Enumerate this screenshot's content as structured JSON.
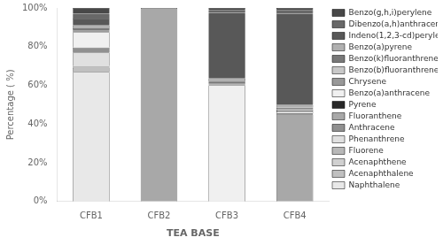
{
  "chart_data": {
    "type": "bar",
    "stacked": true,
    "xlabel": "TEA BASE",
    "ylabel": "Percentage ( %)",
    "categories": [
      "CFB1",
      "CFB2",
      "CFB3",
      "CFB4"
    ],
    "series": [
      {
        "name": "Naphthalene",
        "color": "#e8e8e8",
        "values": [
          67.0,
          0.0,
          0.0,
          0.0
        ]
      },
      {
        "name": "Acenaphthalene",
        "color": "#c0c0c0",
        "values": [
          2.0,
          0.0,
          0.0,
          0.0
        ]
      },
      {
        "name": "Acenaphthene",
        "color": "#d0d0d0",
        "values": [
          0.5,
          0.0,
          0.0,
          0.0
        ]
      },
      {
        "name": "Fluorene",
        "color": "#b8b8b8",
        "values": [
          0.5,
          0.0,
          0.0,
          0.0
        ]
      },
      {
        "name": "Phenanthrene",
        "color": "#e0e0e0",
        "values": [
          7.0,
          0.0,
          0.0,
          0.0
        ]
      },
      {
        "name": "Anthracene",
        "color": "#909090",
        "values": [
          2.5,
          0.0,
          0.0,
          0.0
        ]
      },
      {
        "name": "Fluoranthene",
        "color": "#a8a8a8",
        "values": [
          0.0,
          100.0,
          0.0,
          45.0
        ]
      },
      {
        "name": "Pyrene",
        "color": "#282828",
        "values": [
          0.0,
          0.0,
          0.0,
          0.5
        ]
      },
      {
        "name": "Benzo(a)anthracene",
        "color": "#f0f0f0",
        "values": [
          8.0,
          0.0,
          60.0,
          1.0
        ]
      },
      {
        "name": "Chrysene",
        "color": "#989898",
        "values": [
          0.5,
          0.0,
          0.5,
          0.5
        ]
      },
      {
        "name": "Benzo(b)fluoranthrene",
        "color": "#c8c8c8",
        "values": [
          0.5,
          0.0,
          0.5,
          0.5
        ]
      },
      {
        "name": "Benzo(k)fluoranthrene",
        "color": "#787878",
        "values": [
          1.0,
          0.0,
          1.0,
          1.0
        ]
      },
      {
        "name": "Benzo(a)pyrene",
        "color": "#b0b0b0",
        "values": [
          1.5,
          0.0,
          1.5,
          1.5
        ]
      },
      {
        "name": "Indeno(1,2,3-cd)perylene",
        "color": "#585858",
        "values": [
          3.5,
          0.0,
          34.0,
          47.0
        ]
      },
      {
        "name": "Dibenzo(a,h)anthracene",
        "color": "#686868",
        "values": [
          2.5,
          0.0,
          1.5,
          2.0
        ]
      },
      {
        "name": "Benzo(g,h,i)perylene",
        "color": "#484848",
        "values": [
          3.0,
          0.0,
          1.0,
          1.0
        ]
      }
    ],
    "ylim": [
      0,
      100
    ],
    "yticks": [
      {
        "value": 0,
        "label": "0%"
      },
      {
        "value": 20,
        "label": "20%"
      },
      {
        "value": 40,
        "label": "40%"
      },
      {
        "value": 60,
        "label": "60%"
      },
      {
        "value": 80,
        "label": "80%"
      },
      {
        "value": 100,
        "label": "100%"
      }
    ],
    "grid": false,
    "legend": "right"
  }
}
